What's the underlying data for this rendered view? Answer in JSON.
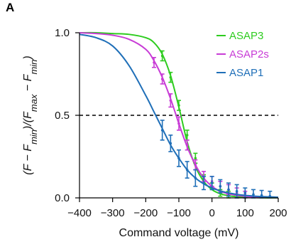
{
  "panel_label": "A",
  "chart_data": {
    "type": "line",
    "xlabel": "Command voltage (mV)",
    "ylabel_parts": [
      "(F − F",
      "min",
      ")/(F",
      "max",
      " − F",
      "min",
      ")"
    ],
    "xlim": [
      -400,
      200
    ],
    "ylim": [
      0,
      1
    ],
    "xticks": [
      -400,
      -300,
      -200,
      -100,
      0,
      100,
      200
    ],
    "xtick_labels": [
      "−400",
      "−300",
      "−200",
      "−100",
      "0",
      "100",
      "200"
    ],
    "yticks": [
      0,
      0.5,
      1
    ],
    "ytick_labels": [
      "0.0",
      "0.5",
      "1.0"
    ],
    "reference_line": {
      "y": 0.5,
      "style": "dashed",
      "color": "#000000"
    },
    "legend_position": "top-right",
    "series": [
      {
        "name": "ASAP3",
        "color": "#2ecc1f",
        "x": [
          -400,
          -350,
          -300,
          -250,
          -200,
          -175,
          -150,
          -125,
          -100,
          -75,
          -50,
          -25,
          0,
          25,
          50,
          75,
          100,
          125,
          150,
          175,
          200
        ],
        "y": [
          1.0,
          1.0,
          0.995,
          0.99,
          0.97,
          0.94,
          0.87,
          0.74,
          0.55,
          0.34,
          0.19,
          0.1,
          0.05,
          0.025,
          0.013,
          0.007,
          0.004,
          0.002,
          0.001,
          0.0,
          0.0
        ],
        "points": [
          {
            "x": -150,
            "y": 0.86,
            "err": 0.03
          },
          {
            "x": -125,
            "y": 0.73,
            "err": 0.03
          },
          {
            "x": -100,
            "y": 0.56,
            "err": 0.03
          },
          {
            "x": -75,
            "y": 0.38,
            "err": 0.03
          },
          {
            "x": -50,
            "y": 0.24,
            "err": 0.03
          },
          {
            "x": -25,
            "y": 0.12,
            "err": 0.02
          },
          {
            "x": 0,
            "y": 0.07,
            "err": 0.02
          },
          {
            "x": 25,
            "y": 0.03,
            "err": 0.02
          },
          {
            "x": 50,
            "y": 0.02,
            "err": 0.02
          }
        ]
      },
      {
        "name": "ASAP2s",
        "color": "#c83cd6",
        "x": [
          -400,
          -350,
          -300,
          -250,
          -200,
          -175,
          -150,
          -125,
          -100,
          -75,
          -50,
          -25,
          0,
          25,
          50,
          75,
          100,
          125,
          150,
          175,
          200
        ],
        "y": [
          1.0,
          0.995,
          0.985,
          0.96,
          0.9,
          0.83,
          0.73,
          0.6,
          0.45,
          0.31,
          0.2,
          0.12,
          0.07,
          0.04,
          0.025,
          0.015,
          0.01,
          0.005,
          0.003,
          0.002,
          0.001
        ],
        "points": [
          {
            "x": -175,
            "y": 0.82,
            "err": 0.03
          },
          {
            "x": -150,
            "y": 0.72,
            "err": 0.03
          },
          {
            "x": -125,
            "y": 0.59,
            "err": 0.04
          },
          {
            "x": -100,
            "y": 0.45,
            "err": 0.04
          },
          {
            "x": -75,
            "y": 0.32,
            "err": 0.03
          },
          {
            "x": -50,
            "y": 0.2,
            "err": 0.03
          },
          {
            "x": -25,
            "y": 0.13,
            "err": 0.03
          },
          {
            "x": 0,
            "y": 0.1,
            "err": 0.03
          },
          {
            "x": 25,
            "y": 0.07,
            "err": 0.03
          },
          {
            "x": 50,
            "y": 0.05,
            "err": 0.03
          },
          {
            "x": 75,
            "y": 0.03,
            "err": 0.03
          },
          {
            "x": 100,
            "y": 0.02,
            "err": 0.02
          }
        ]
      },
      {
        "name": "ASAP1",
        "color": "#1f6fb8",
        "x": [
          -400,
          -350,
          -300,
          -250,
          -200,
          -175,
          -150,
          -125,
          -100,
          -75,
          -50,
          -25,
          0,
          25,
          50,
          75,
          100,
          125,
          150,
          175,
          200
        ],
        "y": [
          0.99,
          0.97,
          0.92,
          0.8,
          0.62,
          0.52,
          0.42,
          0.32,
          0.24,
          0.17,
          0.12,
          0.085,
          0.06,
          0.042,
          0.03,
          0.021,
          0.015,
          0.011,
          0.008,
          0.006,
          0.004
        ],
        "points": [
          {
            "x": -150,
            "y": 0.41,
            "err": 0.06
          },
          {
            "x": -125,
            "y": 0.33,
            "err": 0.05
          },
          {
            "x": -100,
            "y": 0.24,
            "err": 0.05
          },
          {
            "x": -75,
            "y": 0.17,
            "err": 0.05
          },
          {
            "x": -50,
            "y": 0.12,
            "err": 0.05
          },
          {
            "x": -25,
            "y": 0.09,
            "err": 0.04
          },
          {
            "x": 0,
            "y": 0.09,
            "err": 0.04
          },
          {
            "x": 25,
            "y": 0.07,
            "err": 0.04
          },
          {
            "x": 50,
            "y": 0.05,
            "err": 0.04
          },
          {
            "x": 75,
            "y": 0.04,
            "err": 0.04
          },
          {
            "x": 100,
            "y": 0.03,
            "err": 0.03
          },
          {
            "x": 125,
            "y": 0.02,
            "err": 0.03
          },
          {
            "x": 150,
            "y": 0.015,
            "err": 0.03
          },
          {
            "x": 175,
            "y": 0.01,
            "err": 0.03
          }
        ]
      }
    ]
  }
}
